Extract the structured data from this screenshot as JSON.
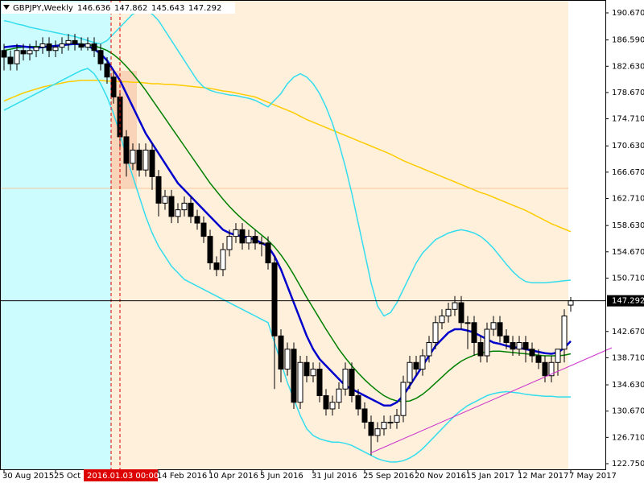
{
  "chart_data": {
    "type": "candlestick",
    "title": "GBPJPY,Weekly",
    "header_values": [
      146.636,
      147.862,
      145.643,
      147.292
    ],
    "categories": [
      "30 Aug 2015",
      null,
      null,
      null,
      null,
      null,
      null,
      null,
      "25 Oct",
      null,
      null,
      null,
      null,
      null,
      null,
      null,
      null,
      null,
      null,
      null,
      null,
      null,
      null,
      null,
      "14 Feb 2016",
      null,
      null,
      null,
      null,
      null,
      null,
      null,
      "10 Apr 2016",
      null,
      null,
      null,
      null,
      null,
      null,
      null,
      "5 Jun 2016",
      null,
      null,
      null,
      null,
      null,
      null,
      null,
      "31 Jul 2016",
      null,
      null,
      null,
      null,
      null,
      null,
      null,
      "25 Sep 2016",
      null,
      null,
      null,
      null,
      null,
      null,
      null,
      "20 Nov 2016",
      null,
      null,
      null,
      null,
      null,
      null,
      null,
      "15 Jan 2017",
      null,
      null,
      null,
      null,
      null,
      null,
      null,
      "12 Mar 2017",
      null,
      null,
      null,
      null,
      null,
      null,
      null,
      "7 May 2017"
    ],
    "crosshair_label": "2016.01.03 00:00",
    "open": [
      185,
      184,
      183,
      185,
      184.5,
      185,
      185.5,
      186,
      185,
      185.5,
      186,
      186.5,
      186,
      185.5,
      186,
      185,
      183,
      181,
      178,
      172,
      168,
      170,
      167,
      170,
      166,
      162,
      163,
      160,
      161,
      162,
      160,
      159,
      157,
      153,
      152,
      155,
      157,
      158,
      156,
      157,
      156,
      156,
      153,
      142,
      137,
      140,
      132,
      138,
      136,
      137,
      133,
      131,
      132,
      134,
      137,
      133,
      131,
      129,
      127,
      128,
      129,
      129,
      130,
      135,
      138,
      137,
      139,
      141,
      144,
      145,
      146,
      147,
      144,
      144,
      141,
      139,
      143,
      144,
      142,
      141,
      140,
      141,
      140,
      139,
      138,
      136,
      138,
      140,
      146.636
    ],
    "high": [
      186,
      185,
      186,
      186,
      186,
      186.5,
      187,
      187,
      186.5,
      187,
      187.5,
      187.5,
      187,
      187,
      187,
      186,
      184,
      182,
      179,
      173,
      171,
      171,
      171,
      171,
      167,
      164,
      164,
      162,
      163,
      163,
      161,
      160,
      158,
      154,
      156,
      158,
      159,
      159,
      158,
      158,
      157,
      157,
      154,
      143,
      141,
      141,
      139,
      139,
      138,
      138,
      134,
      133,
      135,
      138,
      138,
      134,
      132,
      130,
      129,
      130,
      130,
      131,
      136,
      139,
      139,
      140,
      142,
      145,
      146,
      147,
      148,
      148,
      145,
      145,
      142,
      144,
      145,
      145,
      143,
      142,
      142,
      142,
      141,
      140,
      139,
      139,
      140,
      146,
      147.862
    ],
    "low": [
      182,
      182,
      182,
      183.5,
      183.5,
      184,
      184.5,
      184,
      184,
      184.5,
      185,
      185,
      185,
      185,
      184,
      182,
      180,
      177,
      170,
      166,
      167,
      166,
      166,
      164,
      160,
      161,
      159,
      159,
      160,
      159,
      158,
      156,
      152,
      151,
      151,
      154,
      156,
      155,
      155,
      155,
      154,
      152,
      134,
      135,
      136,
      131,
      131,
      135,
      135,
      132,
      130,
      130,
      131,
      133,
      132,
      130,
      128,
      124,
      126,
      127,
      128,
      128,
      129,
      134,
      136,
      136,
      138,
      140,
      143,
      144,
      145,
      143,
      140,
      139,
      138,
      138,
      142,
      141,
      140,
      139,
      139,
      138,
      138,
      137,
      135,
      135,
      136,
      138,
      145.643
    ],
    "close": [
      184,
      183,
      185,
      184.5,
      185,
      185.5,
      186,
      185,
      185.5,
      186,
      186.5,
      186,
      185.5,
      186,
      185,
      183,
      181,
      178,
      172,
      168,
      170,
      167,
      170,
      166,
      162,
      163,
      160,
      161,
      162,
      160,
      159,
      157,
      153,
      152,
      155,
      157,
      158,
      156,
      157,
      156,
      156,
      153,
      142,
      137,
      140,
      132,
      138,
      136,
      137,
      133,
      131,
      132,
      134,
      137,
      133,
      131,
      129,
      127,
      128,
      129,
      129,
      130,
      135,
      138,
      137,
      139,
      141,
      144,
      145,
      146,
      147,
      144,
      144,
      141,
      139,
      143,
      144,
      142,
      141,
      140,
      141,
      140,
      139,
      138,
      136,
      138,
      140,
      145,
      147.292
    ],
    "bull_color": "#ffffff",
    "bear_color": "#000000",
    "lines": [
      {
        "color": "#ffcc00",
        "values": [
          177.4,
          177.8,
          178.2,
          178.6,
          178.9,
          179.2,
          179.5,
          179.7,
          179.9,
          180.1,
          180.3,
          180.4,
          180.5,
          180.5,
          180.5,
          180.5,
          180.4,
          180.4,
          180.3,
          180.3,
          180.2,
          180.2,
          180.1,
          180.0,
          180.0,
          179.9,
          179.9,
          179.8,
          179.7,
          179.6,
          179.5,
          179.4,
          179.3,
          179.1,
          178.9,
          178.8,
          178.6,
          178.4,
          178.2,
          178.0,
          177.6,
          177.2,
          176.8,
          176.4,
          176.0,
          175.6,
          175.1,
          174.6,
          174.2,
          173.8,
          173.4,
          173.0,
          172.6,
          172.2,
          171.8,
          171.4,
          171.0,
          170.6,
          170.2,
          169.8,
          169.4,
          168.9,
          168.4,
          168.0,
          167.6,
          167.2,
          166.8,
          166.4,
          166.0,
          165.6,
          165.2,
          164.8,
          164.4,
          164.0,
          163.6,
          163.3,
          162.9,
          162.5,
          162.1,
          161.7,
          161.3,
          160.9,
          160.4,
          159.9,
          159.4,
          158.9,
          158.5,
          158.1,
          157.7
        ]
      },
      {
        "color": "#33ddee",
        "values": [
          189.5,
          189.3,
          189.0,
          188.8,
          188.5,
          188.3,
          188.1,
          187.9,
          187.7,
          187.5,
          187.3,
          187.1,
          186.8,
          186.5,
          186.2,
          186.0,
          186.5,
          187.5,
          188.5,
          189.5,
          190.5,
          191.0,
          191.0,
          190.5,
          189.5,
          188.0,
          186.5,
          185.0,
          183.5,
          182.0,
          180.5,
          179.5,
          179.0,
          178.7,
          178.5,
          178.3,
          178.2,
          178.0,
          177.8,
          177.5,
          177.0,
          176.5,
          177.5,
          178.5,
          180.0,
          181.0,
          181.5,
          181.0,
          180.0,
          178.5,
          176.5,
          174.0,
          171.0,
          167.5,
          163.5,
          159.0,
          154.5,
          150.0,
          146.5,
          145.0,
          145.5,
          147.0,
          149.0,
          151.0,
          153.0,
          154.5,
          155.5,
          156.5,
          157.0,
          157.5,
          157.8,
          158.0,
          157.8,
          157.5,
          157.0,
          156.2,
          155.2,
          154.0,
          152.8,
          151.7,
          150.8,
          150.2,
          150.0,
          150.0,
          150.0,
          150.1,
          150.2,
          150.3,
          150.4
        ]
      },
      {
        "color": "#33ddee",
        "values": [
          176.0,
          176.5,
          177.0,
          177.5,
          178.0,
          178.5,
          179.0,
          179.5,
          180.0,
          180.5,
          181.0,
          181.5,
          182.0,
          182.3,
          181.5,
          180.0,
          178.0,
          175.5,
          172.5,
          169.0,
          166.0,
          163.0,
          160.0,
          157.5,
          155.5,
          154.0,
          152.5,
          151.5,
          150.5,
          150.0,
          149.5,
          149.0,
          148.5,
          148.0,
          147.5,
          147.0,
          146.5,
          146.0,
          145.5,
          145.0,
          144.5,
          144.0,
          141.0,
          138.0,
          135.0,
          132.5,
          130.0,
          128.0,
          127.0,
          126.5,
          126.2,
          126.0,
          126.0,
          125.8,
          125.5,
          125.0,
          124.5,
          124.0,
          123.5,
          123.2,
          123.0,
          123.0,
          123.2,
          123.6,
          124.2,
          125.0,
          126.0,
          127.0,
          128.0,
          129.0,
          130.0,
          130.8,
          131.5,
          132.0,
          132.5,
          133.0,
          133.3,
          133.5,
          133.6,
          133.5,
          133.4,
          133.2,
          133.1,
          133.0,
          132.9,
          132.9,
          132.8,
          132.8,
          132.8
        ]
      },
      {
        "color": "#008000",
        "values": [
          185.0,
          185.2,
          185.4,
          185.5,
          185.6,
          185.6,
          185.6,
          185.6,
          185.7,
          185.8,
          185.9,
          186.0,
          186.0,
          185.9,
          185.7,
          185.4,
          185.0,
          184.4,
          183.6,
          182.6,
          181.5,
          180.3,
          179.0,
          177.6,
          176.2,
          174.8,
          173.4,
          172.0,
          170.6,
          169.2,
          167.8,
          166.4,
          165.0,
          163.8,
          162.6,
          161.5,
          160.5,
          159.6,
          158.8,
          158.0,
          157.2,
          156.4,
          155.4,
          154.2,
          152.8,
          151.2,
          149.5,
          147.8,
          146.2,
          144.6,
          143.0,
          141.5,
          140.0,
          138.7,
          137.5,
          136.4,
          135.4,
          134.5,
          133.7,
          133.0,
          132.5,
          132.2,
          132.1,
          132.2,
          132.6,
          133.2,
          134.0,
          134.9,
          135.8,
          136.7,
          137.5,
          138.2,
          138.7,
          139.1,
          139.4,
          139.6,
          139.7,
          139.7,
          139.6,
          139.5,
          139.4,
          139.3,
          139.2,
          139.1,
          139.0,
          139.0,
          139.0,
          139.1,
          139.3
        ]
      },
      {
        "color": "#0000cc",
        "values": [
          185.5,
          185.6,
          185.7,
          185.6,
          185.5,
          185.4,
          185.5,
          185.6,
          185.7,
          185.8,
          185.9,
          186.0,
          185.9,
          185.7,
          185.2,
          184.5,
          183.5,
          182.0,
          180.5,
          178.5,
          176.5,
          174.5,
          172.5,
          171.0,
          169.5,
          168.0,
          166.5,
          165.0,
          164.0,
          163.0,
          162.0,
          161.0,
          160.0,
          159.0,
          158.0,
          157.5,
          157.2,
          157.0,
          156.8,
          156.5,
          156.0,
          155.5,
          154.0,
          152.0,
          149.5,
          147.0,
          144.5,
          142.0,
          140.0,
          138.5,
          137.5,
          136.5,
          135.5,
          134.5,
          134.0,
          133.5,
          133.0,
          132.5,
          132.0,
          131.5,
          131.5,
          132.0,
          133.0,
          134.5,
          136.0,
          137.5,
          139.0,
          140.5,
          141.5,
          142.5,
          143.0,
          143.0,
          142.8,
          142.5,
          142.0,
          141.5,
          141.0,
          140.8,
          140.5,
          140.3,
          140.2,
          140.0,
          139.8,
          139.6,
          139.4,
          139.3,
          139.5,
          140.2,
          141.2
        ]
      }
    ],
    "current_price": 147.292,
    "ylim": [
      121.9,
      192.61
    ],
    "yticks": [
      {
        "value": 190.67,
        "label": "190.670"
      },
      {
        "value": 186.59,
        "label": "186.590"
      },
      {
        "value": 182.63,
        "label": "182.630"
      },
      {
        "value": 178.67,
        "label": "178.670"
      },
      {
        "value": 174.71,
        "label": "174.710"
      },
      {
        "value": 170.63,
        "label": "170.630"
      },
      {
        "value": 166.67,
        "label": "166.670"
      },
      {
        "value": 162.71,
        "label": "162.710"
      },
      {
        "value": 158.63,
        "label": "158.630"
      },
      {
        "value": 154.67,
        "label": "154.670"
      },
      {
        "value": 150.71,
        "label": "150.710"
      },
      {
        "value": 142.67,
        "label": "142.670"
      },
      {
        "value": 138.71,
        "label": "138.710"
      },
      {
        "value": 134.63,
        "label": "134.630"
      },
      {
        "value": 130.67,
        "label": "130.670"
      },
      {
        "value": 126.71,
        "label": "126.710"
      },
      {
        "value": 122.75,
        "label": "122.750"
      }
    ]
  }
}
